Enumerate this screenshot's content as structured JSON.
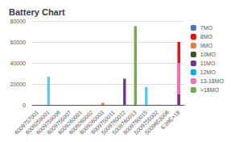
{
  "chart_data": {
    "type": "bar",
    "title": "Battery Chart",
    "categories": [
      "6009757001",
      "6009259001",
      "6009759006",
      "6009755007",
      "6009260001",
      "6009260002",
      "6009260003",
      "6009750011",
      "5009760012",
      "5009760013",
      "6009760015",
      "5009755002",
      "5009653006",
      "6.09E+18"
    ],
    "series": [
      {
        "name": "7MO",
        "color": "#4472C4",
        "values": [
          null,
          null,
          null,
          null,
          null,
          null,
          null,
          null,
          null,
          null,
          null,
          null,
          null,
          null
        ]
      },
      {
        "name": "8MO",
        "color": "#FF0000",
        "values": [
          null,
          null,
          null,
          null,
          null,
          null,
          null,
          null,
          null,
          null,
          null,
          null,
          null,
          60000
        ]
      },
      {
        "name": "9MO",
        "color": "#ED7D31",
        "values": [
          null,
          null,
          null,
          null,
          null,
          null,
          2000,
          null,
          null,
          null,
          null,
          null,
          null,
          null
        ]
      },
      {
        "name": "10MO",
        "color": "#375623",
        "values": [
          null,
          null,
          null,
          null,
          null,
          null,
          null,
          null,
          null,
          null,
          null,
          null,
          null,
          null
        ]
      },
      {
        "name": "11MO",
        "color": "#7030A0",
        "values": [
          null,
          null,
          null,
          null,
          null,
          null,
          null,
          null,
          25000,
          null,
          null,
          null,
          null,
          null
        ]
      },
      {
        "name": "12MO",
        "color": "#00B0F0",
        "values": [
          null,
          27000,
          null,
          null,
          null,
          null,
          null,
          null,
          null,
          null,
          17000,
          300,
          null,
          null
        ],
        "colors": [
          null,
          "#5BC8F5",
          null,
          null,
          null,
          null,
          null,
          null,
          null,
          null,
          "#5BC8F5",
          "#5BC8F5",
          null,
          null
        ]
      },
      {
        "name": "13-18MO",
        "color": "#FF69B4",
        "values": [
          null,
          null,
          null,
          null,
          null,
          null,
          null,
          null,
          null,
          null,
          null,
          null,
          null,
          40000
        ]
      },
      {
        "name": "13-18MO",
        "color": "#FF69B4",
        "values": [
          null,
          null,
          null,
          null,
          null,
          null,
          null,
          null,
          null,
          null,
          null,
          null,
          null,
          20000
        ]
      },
      {
        "name": "11MO",
        "color": "#7030A0",
        "values": [
          null,
          null,
          null,
          null,
          null,
          null,
          null,
          null,
          null,
          null,
          null,
          null,
          null,
          10000
        ]
      },
      {
        "name": ">18MO",
        "color": "#70AD47",
        "values": [
          null,
          null,
          null,
          null,
          null,
          null,
          null,
          null,
          null,
          75000,
          null,
          null,
          null,
          null
        ]
      }
    ],
    "ylim": [
      0,
      80000
    ],
    "yticks": [
      0,
      20000,
      40000,
      60000,
      80000
    ],
    "grid": true,
    "legend": "upper right"
  }
}
